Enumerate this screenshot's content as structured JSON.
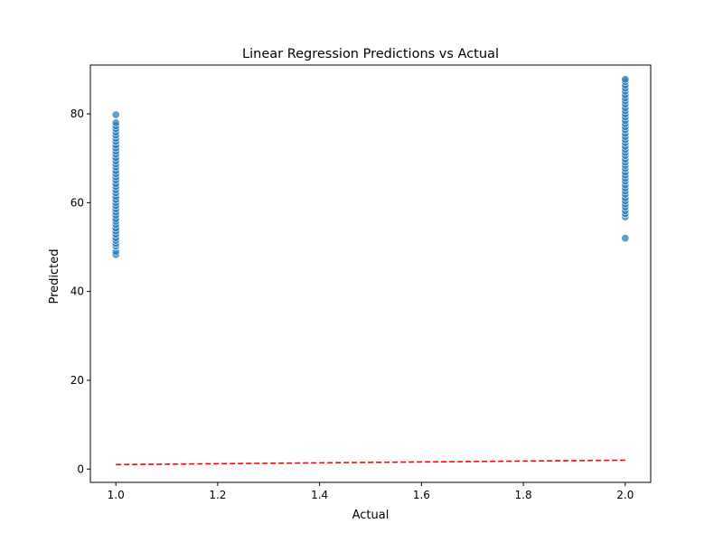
{
  "chart_data": {
    "type": "scatter",
    "title": "Linear Regression Predictions vs Actual",
    "xlabel": "Actual",
    "ylabel": "Predicted",
    "xlim": [
      0.95,
      2.05
    ],
    "ylim": [
      -3,
      91
    ],
    "xticks": [
      1.0,
      1.2,
      1.4,
      1.6,
      1.8,
      2.0
    ],
    "xtick_labels": [
      "1.0",
      "1.2",
      "1.4",
      "1.6",
      "1.8",
      "2.0"
    ],
    "yticks": [
      0,
      20,
      40,
      60,
      80
    ],
    "ytick_labels": [
      "0",
      "20",
      "40",
      "60",
      "80"
    ],
    "grid": false,
    "series": [
      {
        "kind": "scatter",
        "color": "#1f77b4",
        "points": [
          [
            1,
            48.3
          ],
          [
            1,
            49.0
          ],
          [
            1,
            50.2
          ],
          [
            1,
            50.8
          ],
          [
            1,
            51.5
          ],
          [
            1,
            52.1
          ],
          [
            1,
            52.9
          ],
          [
            1,
            53.6
          ],
          [
            1,
            54.3
          ],
          [
            1,
            55.1
          ],
          [
            1,
            55.8
          ],
          [
            1,
            56.4
          ],
          [
            1,
            57.2
          ],
          [
            1,
            57.9
          ],
          [
            1,
            58.6
          ],
          [
            1,
            59.3
          ],
          [
            1,
            60.0
          ],
          [
            1,
            60.7
          ],
          [
            1,
            61.4
          ],
          [
            1,
            62.2
          ],
          [
            1,
            62.9
          ],
          [
            1,
            63.6
          ],
          [
            1,
            64.3
          ],
          [
            1,
            65.1
          ],
          [
            1,
            65.8
          ],
          [
            1,
            66.5
          ],
          [
            1,
            67.2
          ],
          [
            1,
            68.0
          ],
          [
            1,
            68.7
          ],
          [
            1,
            69.4
          ],
          [
            1,
            70.1
          ],
          [
            1,
            70.9
          ],
          [
            1,
            71.6
          ],
          [
            1,
            72.3
          ],
          [
            1,
            73.0
          ],
          [
            1,
            73.8
          ],
          [
            1,
            74.5
          ],
          [
            1,
            75.2
          ],
          [
            1,
            75.9
          ],
          [
            1,
            76.6
          ],
          [
            1,
            77.3
          ],
          [
            1,
            78.0
          ],
          [
            1,
            79.8
          ],
          [
            2,
            52.0
          ],
          [
            2,
            56.8
          ],
          [
            2,
            57.5
          ],
          [
            2,
            58.2
          ],
          [
            2,
            59.0
          ],
          [
            2,
            59.7
          ],
          [
            2,
            60.4
          ],
          [
            2,
            61.1
          ],
          [
            2,
            61.9
          ],
          [
            2,
            62.6
          ],
          [
            2,
            63.3
          ],
          [
            2,
            64.0
          ],
          [
            2,
            64.8
          ],
          [
            2,
            65.5
          ],
          [
            2,
            66.2
          ],
          [
            2,
            66.9
          ],
          [
            2,
            67.7
          ],
          [
            2,
            68.4
          ],
          [
            2,
            69.1
          ],
          [
            2,
            69.8
          ],
          [
            2,
            70.6
          ],
          [
            2,
            71.3
          ],
          [
            2,
            72.0
          ],
          [
            2,
            72.7
          ],
          [
            2,
            73.5
          ],
          [
            2,
            74.2
          ],
          [
            2,
            74.9
          ],
          [
            2,
            75.6
          ],
          [
            2,
            76.4
          ],
          [
            2,
            77.1
          ],
          [
            2,
            77.8
          ],
          [
            2,
            78.5
          ],
          [
            2,
            79.3
          ],
          [
            2,
            80.0
          ],
          [
            2,
            80.7
          ],
          [
            2,
            81.4
          ],
          [
            2,
            82.2
          ],
          [
            2,
            82.9
          ],
          [
            2,
            83.6
          ],
          [
            2,
            84.3
          ],
          [
            2,
            85.1
          ],
          [
            2,
            85.8
          ],
          [
            2,
            86.5
          ],
          [
            2,
            87.3
          ],
          [
            2,
            87.8
          ]
        ]
      },
      {
        "kind": "reference_line",
        "style": "dashed",
        "color": "#ff0000",
        "x": [
          1,
          2
        ],
        "y": [
          1,
          2
        ]
      }
    ]
  }
}
